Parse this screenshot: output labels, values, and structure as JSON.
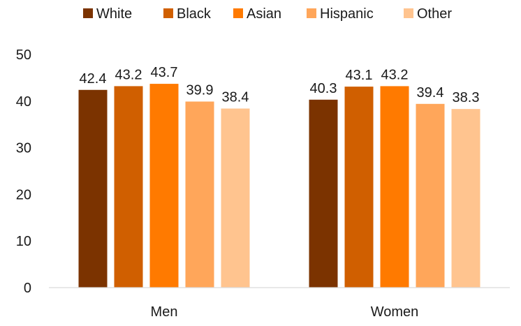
{
  "chart_data": {
    "type": "bar",
    "categories": [
      "Men",
      "Women"
    ],
    "series": [
      {
        "name": "White",
        "color": "#7B3300",
        "values": [
          42.4,
          40.3
        ]
      },
      {
        "name": "Black",
        "color": "#D05F00",
        "values": [
          43.2,
          43.1
        ]
      },
      {
        "name": "Asian",
        "color": "#FF7A00",
        "values": [
          43.7,
          43.2
        ]
      },
      {
        "name": "Hispanic",
        "color": "#FFA65A",
        "values": [
          39.9,
          39.4
        ]
      },
      {
        "name": "Other",
        "color": "#FFC48F",
        "values": [
          38.4,
          38.3
        ]
      }
    ],
    "title": "",
    "xlabel": "",
    "ylabel": "",
    "ylim": [
      0,
      50
    ],
    "yticks": [
      0,
      10,
      20,
      30,
      40,
      50
    ],
    "grid": false,
    "legend_position": "top",
    "data_labels": true
  }
}
